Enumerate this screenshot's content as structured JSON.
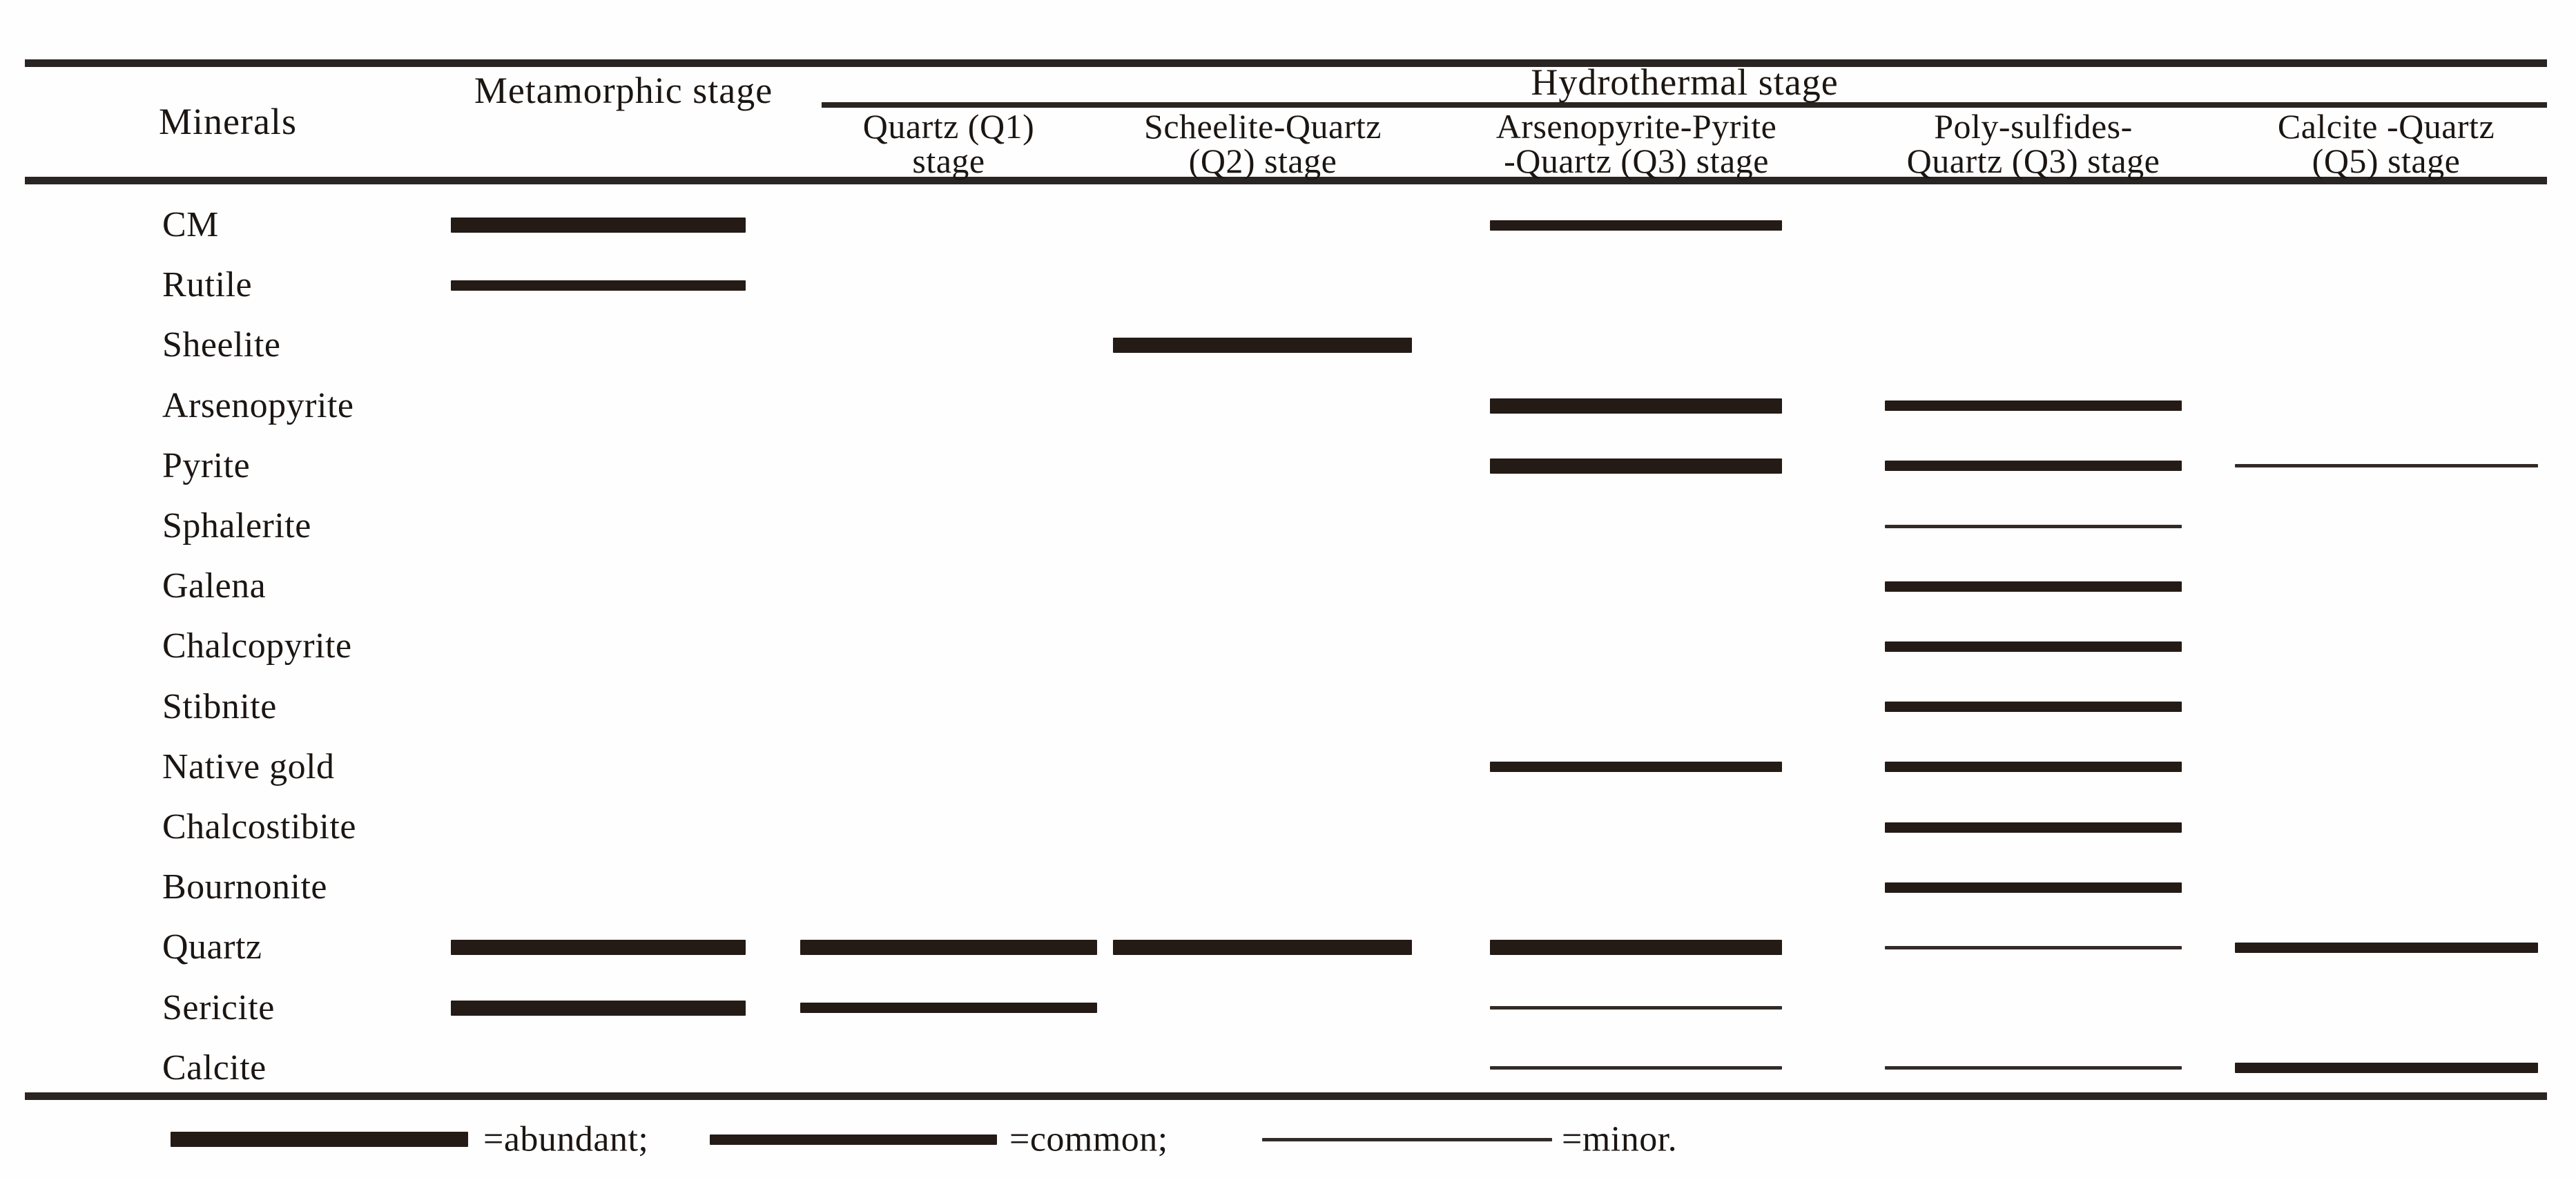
{
  "header": {
    "minerals": "Minerals",
    "metamorphic": "Metamorphic stage",
    "hydrothermal": "Hydrothermal stage",
    "substages": [
      {
        "line1": "Quartz (Q1)",
        "line2": "stage"
      },
      {
        "line1": "Scheelite-Quartz",
        "line2": "(Q2) stage"
      },
      {
        "line1": "Arsenopyrite-Pyrite",
        "line2": "-Quartz (Q3) stage"
      },
      {
        "line1": "Poly-sulfides-",
        "line2": "Quartz (Q3) stage"
      },
      {
        "line1": "Calcite -Quartz",
        "line2": "(Q5) stage"
      }
    ]
  },
  "chart_data": {
    "type": "table",
    "title": "Mineral paragenetic sequence",
    "columns": [
      "Metamorphic stage",
      "Quartz (Q1) stage",
      "Scheelite-Quartz (Q2) stage",
      "Arsenopyrite-Pyrite-Quartz (Q3) stage",
      "Poly-sulfides-Quartz (Q3) stage",
      "Calcite -Quartz (Q5) stage"
    ],
    "value_encoding": "bar thickness: abundant = thick, common = medium, minor = thin",
    "rows": [
      {
        "mineral": "CM",
        "values": [
          "abundant",
          null,
          null,
          "common",
          null,
          null
        ]
      },
      {
        "mineral": "Rutile",
        "values": [
          "common",
          null,
          null,
          null,
          null,
          null
        ]
      },
      {
        "mineral": "Sheelite",
        "values": [
          null,
          null,
          "abundant",
          null,
          null,
          null
        ]
      },
      {
        "mineral": "Arsenopyrite",
        "values": [
          null,
          null,
          null,
          "abundant",
          "common",
          null
        ]
      },
      {
        "mineral": "Pyrite",
        "values": [
          null,
          null,
          null,
          "abundant",
          "common",
          "minor"
        ]
      },
      {
        "mineral": "Sphalerite",
        "values": [
          null,
          null,
          null,
          null,
          "minor",
          null
        ]
      },
      {
        "mineral": "Galena",
        "values": [
          null,
          null,
          null,
          null,
          "common",
          null
        ]
      },
      {
        "mineral": "Chalcopyrite",
        "values": [
          null,
          null,
          null,
          null,
          "common",
          null
        ]
      },
      {
        "mineral": "Stibnite",
        "values": [
          null,
          null,
          null,
          null,
          "common",
          null
        ]
      },
      {
        "mineral": "Native gold",
        "values": [
          null,
          null,
          null,
          "common",
          "common",
          null
        ]
      },
      {
        "mineral": "Chalcostibite",
        "values": [
          null,
          null,
          null,
          null,
          "common",
          null
        ]
      },
      {
        "mineral": "Bournonite",
        "values": [
          null,
          null,
          null,
          null,
          "common",
          null
        ]
      },
      {
        "mineral": "Quartz",
        "values": [
          "abundant",
          "abundant",
          "abundant",
          "abundant",
          "minor",
          "common"
        ]
      },
      {
        "mineral": "Sericite",
        "values": [
          "abundant",
          "common",
          null,
          "minor",
          null,
          null
        ]
      },
      {
        "mineral": "Calcite",
        "values": [
          null,
          null,
          null,
          "minor",
          "minor",
          "common"
        ]
      }
    ]
  },
  "legend": {
    "items": [
      {
        "level": "abundant",
        "label": "=abundant;"
      },
      {
        "level": "common",
        "label": "=common;"
      },
      {
        "level": "minor",
        "label": "=minor."
      }
    ]
  },
  "colors": {
    "ink": "#241b16",
    "rule": "#2a2422",
    "background": "#fefefe"
  }
}
